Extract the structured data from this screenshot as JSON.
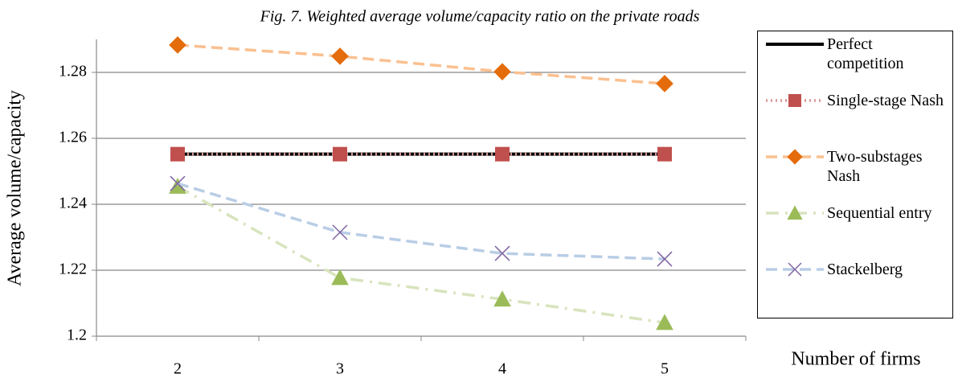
{
  "chart_data": {
    "type": "line",
    "title": "Fig. 7. Weighted average volume/capacity ratio on the private roads",
    "x_label": "Number of firms",
    "y_label": "Average volume/capacity",
    "categories": [
      "2",
      "3",
      "4",
      "5"
    ],
    "ylim": [
      1.2,
      1.29
    ],
    "yticks": [
      1.2,
      1.22,
      1.24,
      1.26,
      1.28
    ],
    "grid": true,
    "series": [
      {
        "name": "Perfect competition",
        "color": "#000000",
        "marker_color": "#000000",
        "marker": "none",
        "dash": "solid",
        "values": [
          1.2552,
          1.2552,
          1.2552,
          1.2552
        ]
      },
      {
        "name": "Single-stage Nash",
        "color": "#d99694",
        "marker_color": "#c0504d",
        "marker": "square",
        "dash": "dotted",
        "values": [
          1.2552,
          1.2552,
          1.2552,
          1.2552
        ]
      },
      {
        "name": "Two-substages Nash",
        "color": "#fac090",
        "marker_color": "#e46c0a",
        "marker": "diamond",
        "dash": "dashed",
        "values": [
          1.2883,
          1.2849,
          1.2802,
          1.2766
        ]
      },
      {
        "name": "Sequential entry",
        "color": "#d7e4bd",
        "marker_color": "#9bbb59",
        "marker": "triangle",
        "dash": "dashdot",
        "values": [
          1.2454,
          1.2177,
          1.2112,
          1.2041
        ]
      },
      {
        "name": "Stackelberg",
        "color": "#b9cde5",
        "marker_color": "#8064a2",
        "marker": "x",
        "dash": "dashed",
        "values": [
          1.2463,
          1.2315,
          1.2251,
          1.2234
        ]
      }
    ]
  }
}
